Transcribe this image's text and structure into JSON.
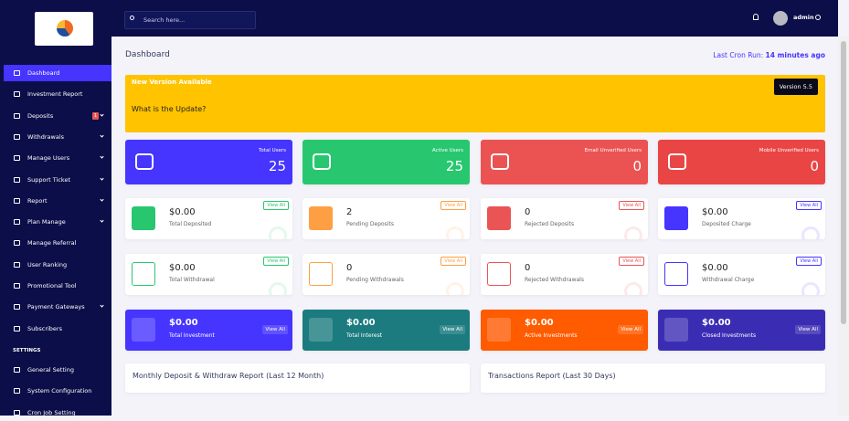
{
  "sidebar": {
    "menu": [
      {
        "label": "Dashboard",
        "active": true
      },
      {
        "label": "Investment Report"
      },
      {
        "label": "Deposits",
        "badge": "1",
        "submenu": true
      },
      {
        "label": "Withdrawals",
        "submenu": true
      },
      {
        "label": "Manage Users",
        "submenu": true
      },
      {
        "label": "Support Ticket",
        "submenu": true
      },
      {
        "label": "Report",
        "submenu": true
      },
      {
        "label": "Plan Manage",
        "submenu": true
      },
      {
        "label": "Manage Referral"
      },
      {
        "label": "User Ranking"
      },
      {
        "label": "Promotional Tool"
      },
      {
        "label": "Payment Gateways",
        "submenu": true
      },
      {
        "label": "Subscribers"
      }
    ],
    "section": "SETTINGS",
    "settings": [
      {
        "label": "General Setting"
      },
      {
        "label": "System Configuration"
      },
      {
        "label": "Cron Job Setting"
      }
    ]
  },
  "topbar": {
    "search": "Search here...",
    "user": "admin"
  },
  "header": {
    "title": "Dashboard",
    "cron_label": "Last Cron Run:",
    "cron_value": "14 minutes ago"
  },
  "banner": {
    "title": "New Version Available",
    "text": "What is the Update?",
    "version": "Version 5.5"
  },
  "stats": [
    {
      "label": "Total Users",
      "value": 25,
      "color": "#4634ff"
    },
    {
      "label": "Active Users",
      "value": 25,
      "color": "#28c76f"
    },
    {
      "label": "Email Unverified Users",
      "value": 0,
      "color": "#eb5353"
    },
    {
      "label": "Mobile Unverified Users",
      "value": 0,
      "color": "#ea4545"
    }
  ],
  "widgets": [
    {
      "value": "$0.00",
      "label": "Total Deposited",
      "link": "View All",
      "color": "#28c76f",
      "style": "solid"
    },
    {
      "value": 2,
      "label": "Pending Deposits",
      "link": "View All",
      "color": "#ff9f43",
      "style": "solid"
    },
    {
      "value": 0,
      "label": "Rejected Deposits",
      "link": "View All",
      "color": "#ea5455",
      "style": "solid"
    },
    {
      "value": "$0.00",
      "label": "Deposited Charge",
      "link": "View All",
      "color": "#4634ff",
      "style": "solid"
    },
    {
      "value": "$0.00",
      "label": "Total Withdrawal",
      "link": "View All",
      "color": "#28c76f",
      "style": "outline"
    },
    {
      "value": 0,
      "label": "Pending Withdrawals",
      "link": "View All",
      "color": "#ff9f43",
      "style": "outline"
    },
    {
      "value": 0,
      "label": "Rejected Withdrawals",
      "link": "View All",
      "color": "#ea5455",
      "style": "outline"
    },
    {
      "value": "$0.00",
      "label": "Withdrawal Charge",
      "link": "View All",
      "color": "#4634ff",
      "style": "outline"
    }
  ],
  "investments": [
    {
      "value": "$0.00",
      "label": "Total Investment",
      "link": "View All",
      "color": "#4634ff"
    },
    {
      "value": "$0.00",
      "label": "Total Interest",
      "link": "View All",
      "color": "#1b7b7f"
    },
    {
      "value": "$0.00",
      "label": "Active Investments",
      "link": "View All",
      "color": "#ff5b00"
    },
    {
      "value": "$0.00",
      "label": "Closed Investments",
      "link": "View All",
      "color": "#3b2db3"
    }
  ],
  "reports": [
    {
      "title": "Monthly Deposit & Withdraw Report (Last 12 Month)"
    },
    {
      "title": "Transactions Report (Last 30 Days)"
    }
  ]
}
